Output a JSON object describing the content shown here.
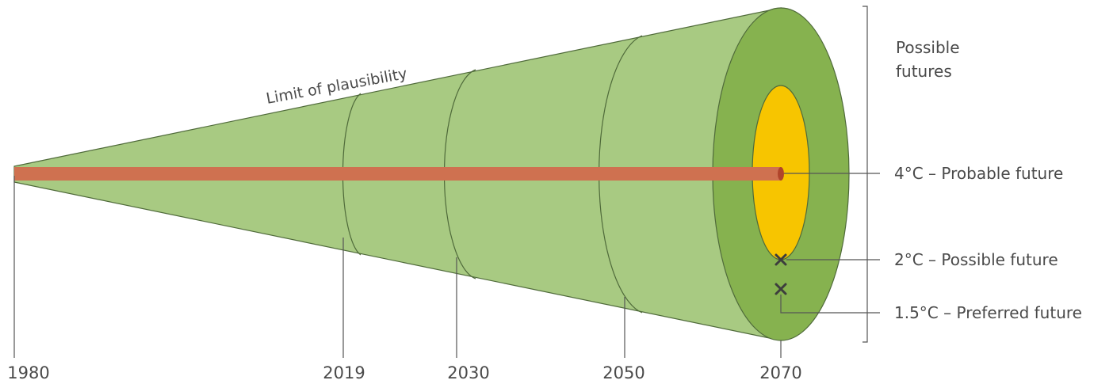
{
  "figure": {
    "cone_label": "Limit of plausibility",
    "possible_futures": [
      "Possible",
      "futures"
    ],
    "years": [
      {
        "label": "1980"
      },
      {
        "label": "2019"
      },
      {
        "label": "2030"
      },
      {
        "label": "2050"
      },
      {
        "label": "2070"
      }
    ],
    "futures": [
      {
        "label": "4°C – Probable future"
      },
      {
        "label": "2°C – Possible future"
      },
      {
        "label": "1.5°C – Preferred future"
      }
    ],
    "colors": {
      "cone_fill": "#a8ca82",
      "end_outer_ring": "#86b24f",
      "probable_core": "#f7c500",
      "trajectory_bar": "#cf7150",
      "outline": "#4f6a3a",
      "text": "#4a4a4a"
    }
  }
}
